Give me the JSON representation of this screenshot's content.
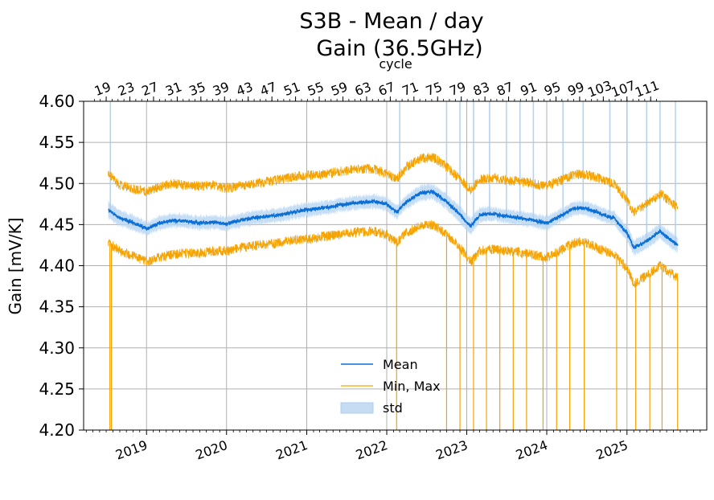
{
  "chart_data": {
    "type": "line",
    "title_lines": [
      "S3B - Mean / day",
      "Gain (36.5GHz)"
    ],
    "ylabel": "Gain [mV/K]",
    "top_axis_label": "cycle",
    "ylim": [
      4.2,
      4.6
    ],
    "yticks": [
      "4.20",
      "4.25",
      "4.30",
      "4.35",
      "4.40",
      "4.45",
      "4.50",
      "4.55",
      "4.60"
    ],
    "xlim": [
      "2018-03-20",
      "2025-12-31"
    ],
    "xticks": [
      {
        "label": "2019",
        "date": "2019-01-01"
      },
      {
        "label": "2020",
        "date": "2020-01-01"
      },
      {
        "label": "2021",
        "date": "2021-01-01"
      },
      {
        "label": "2022",
        "date": "2022-01-01"
      },
      {
        "label": "2023",
        "date": "2023-01-01"
      },
      {
        "label": "2024",
        "date": "2024-01-01"
      },
      {
        "label": "2025",
        "date": "2025-01-01"
      }
    ],
    "cycle_axis": {
      "labels": [
        "19",
        "23",
        "27",
        "31",
        "35",
        "39",
        "43",
        "47",
        "51",
        "55",
        "59",
        "63",
        "67",
        "71",
        "75",
        "79",
        "83",
        "87",
        "91",
        "95",
        "99",
        "103",
        "107",
        "111"
      ],
      "first_cycle_date": "2018-07-01",
      "cycle_days": 27
    },
    "legend": {
      "position": "lower-center",
      "entries": [
        {
          "label": "Mean",
          "color": "#0a6fd6",
          "style": "line"
        },
        {
          "label": "Min, Max",
          "color": "#f5a300",
          "style": "line"
        },
        {
          "label": "std",
          "color": "#a9cdef",
          "style": "patch"
        }
      ]
    },
    "colors": {
      "mean": "#0a6fd6",
      "minmax": "#f5a300",
      "std": "#b8d6f2",
      "grid": "#b0b0b0"
    },
    "series": {
      "dates": [
        "2018-07-10",
        "2018-09-01",
        "2018-11-01",
        "2019-01-01",
        "2019-03-01",
        "2019-05-01",
        "2019-07-01",
        "2019-09-01",
        "2019-11-01",
        "2020-01-01",
        "2020-03-01",
        "2020-05-01",
        "2020-07-01",
        "2020-09-01",
        "2020-11-01",
        "2021-01-01",
        "2021-03-01",
        "2021-05-01",
        "2021-07-01",
        "2021-09-01",
        "2021-11-01",
        "2022-01-01",
        "2022-02-15",
        "2022-04-01",
        "2022-06-01",
        "2022-08-01",
        "2022-10-01",
        "2022-12-01",
        "2023-01-20",
        "2023-03-01",
        "2023-05-01",
        "2023-07-01",
        "2023-09-01",
        "2023-11-01",
        "2024-01-01",
        "2024-03-01",
        "2024-05-01",
        "2024-07-01",
        "2024-09-01",
        "2024-11-01",
        "2025-01-01",
        "2025-02-01",
        "2025-04-01",
        "2025-06-01",
        "2025-08-20"
      ],
      "mean": [
        4.468,
        4.458,
        4.452,
        4.445,
        4.452,
        4.455,
        4.454,
        4.452,
        4.453,
        4.451,
        4.455,
        4.458,
        4.46,
        4.462,
        4.465,
        4.468,
        4.47,
        4.472,
        4.475,
        4.477,
        4.478,
        4.475,
        4.465,
        4.478,
        4.488,
        4.49,
        4.478,
        4.462,
        4.448,
        4.462,
        4.463,
        4.46,
        4.458,
        4.455,
        4.452,
        4.46,
        4.47,
        4.47,
        4.463,
        4.458,
        4.44,
        4.422,
        4.43,
        4.442,
        4.425
      ],
      "max": [
        4.512,
        4.498,
        4.494,
        4.49,
        4.496,
        4.5,
        4.498,
        4.497,
        4.498,
        4.494,
        4.497,
        4.499,
        4.502,
        4.505,
        4.508,
        4.51,
        4.511,
        4.513,
        4.516,
        4.518,
        4.518,
        4.512,
        4.505,
        4.52,
        4.53,
        4.532,
        4.52,
        4.505,
        4.492,
        4.505,
        4.507,
        4.504,
        4.502,
        4.5,
        4.497,
        4.503,
        4.511,
        4.511,
        4.506,
        4.5,
        4.48,
        4.465,
        4.475,
        4.488,
        4.47
      ],
      "min": [
        4.428,
        4.418,
        4.412,
        4.405,
        4.41,
        4.414,
        4.415,
        4.415,
        4.418,
        4.418,
        4.421,
        4.424,
        4.426,
        4.428,
        4.431,
        4.432,
        4.435,
        4.437,
        4.44,
        4.441,
        4.442,
        4.438,
        4.428,
        4.44,
        4.448,
        4.45,
        4.438,
        4.422,
        4.405,
        4.418,
        4.42,
        4.418,
        4.416,
        4.413,
        4.41,
        4.418,
        4.428,
        4.428,
        4.42,
        4.415,
        4.396,
        4.378,
        4.388,
        4.4,
        4.385
      ],
      "std": [
        0.01,
        0.009,
        0.009,
        0.008,
        0.008,
        0.008,
        0.008,
        0.008,
        0.008,
        0.008,
        0.008,
        0.008,
        0.008,
        0.008,
        0.008,
        0.008,
        0.008,
        0.008,
        0.008,
        0.008,
        0.008,
        0.008,
        0.008,
        0.008,
        0.009,
        0.009,
        0.009,
        0.01,
        0.01,
        0.009,
        0.008,
        0.008,
        0.008,
        0.008,
        0.008,
        0.008,
        0.008,
        0.008,
        0.008,
        0.008,
        0.009,
        0.009,
        0.009,
        0.009,
        0.009
      ]
    },
    "min_drop_dates": [
      "2018-07-18",
      "2018-07-25",
      "2022-02-15",
      "2022-10-01",
      "2022-12-01",
      "2023-02-01",
      "2023-04-01",
      "2023-06-01",
      "2023-08-01",
      "2023-10-01",
      "2023-12-15",
      "2024-02-15",
      "2024-04-15",
      "2024-06-20",
      "2024-11-15",
      "2025-02-10",
      "2025-04-15",
      "2025-06-10",
      "2025-08-20"
    ],
    "std_spike_dates": [
      "2018-07-20",
      "2022-03-01",
      "2022-10-01",
      "2022-12-01",
      "2023-02-01",
      "2023-04-15",
      "2023-07-01",
      "2023-09-01",
      "2023-11-01",
      "2024-03-15",
      "2024-06-15",
      "2024-10-15",
      "2025-01-01",
      "2025-04-01",
      "2025-06-01",
      "2025-08-10"
    ]
  }
}
